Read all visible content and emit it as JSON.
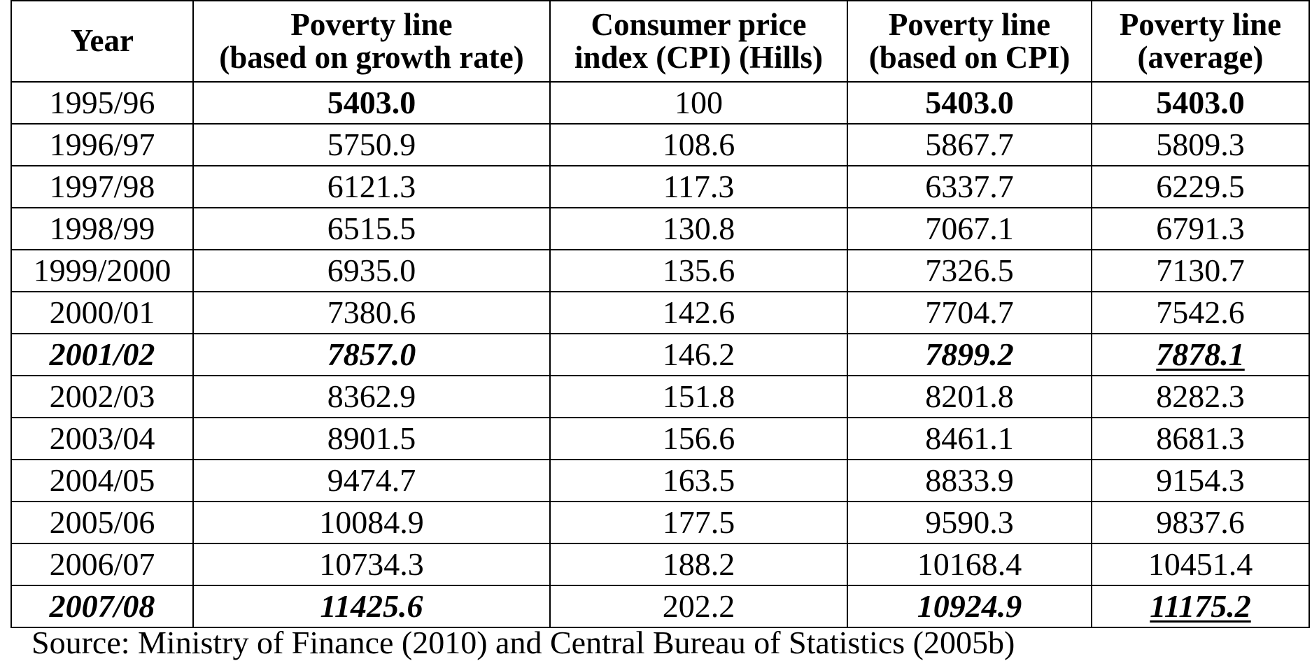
{
  "table": {
    "headers": [
      {
        "line1": "Year",
        "line2": ""
      },
      {
        "line1": "Poverty line",
        "line2": "(based on growth rate)"
      },
      {
        "line1": "Consumer price",
        "line2": "index (CPI) (Hills)"
      },
      {
        "line1": "Poverty line",
        "line2": "(based on CPI)"
      },
      {
        "line1": "Poverty line",
        "line2": "(average)"
      }
    ],
    "rows": [
      {
        "year": "1995/96",
        "growth": "5403.0",
        "cpi": "100",
        "cpi_line": "5403.0",
        "average": "5403.0"
      },
      {
        "year": "1996/97",
        "growth": "5750.9",
        "cpi": "108.6",
        "cpi_line": "5867.7",
        "average": "5809.3"
      },
      {
        "year": "1997/98",
        "growth": "6121.3",
        "cpi": "117.3",
        "cpi_line": "6337.7",
        "average": "6229.5"
      },
      {
        "year": "1998/99",
        "growth": "6515.5",
        "cpi": "130.8",
        "cpi_line": "7067.1",
        "average": "6791.3"
      },
      {
        "year": "1999/2000",
        "growth": "6935.0",
        "cpi": "135.6",
        "cpi_line": "7326.5",
        "average": "7130.7"
      },
      {
        "year": "2000/01",
        "growth": "7380.6",
        "cpi": "142.6",
        "cpi_line": "7704.7",
        "average": "7542.6"
      },
      {
        "year": "2001/02",
        "growth": "7857.0",
        "cpi": "146.2",
        "cpi_line": "7899.2",
        "average": "7878.1"
      },
      {
        "year": "2002/03",
        "growth": "8362.9",
        "cpi": "151.8",
        "cpi_line": "8201.8",
        "average": "8282.3"
      },
      {
        "year": "2003/04",
        "growth": "8901.5",
        "cpi": "156.6",
        "cpi_line": "8461.1",
        "average": "8681.3"
      },
      {
        "year": "2004/05",
        "growth": "9474.7",
        "cpi": "163.5",
        "cpi_line": "8833.9",
        "average": "9154.3"
      },
      {
        "year": "2005/06",
        "growth": "10084.9",
        "cpi": "177.5",
        "cpi_line": "9590.3",
        "average": "9837.6"
      },
      {
        "year": "2006/07",
        "growth": "10734.3",
        "cpi": "188.2",
        "cpi_line": "10168.4",
        "average": "10451.4"
      },
      {
        "year": "2007/08",
        "growth": "11425.6",
        "cpi": "202.2",
        "cpi_line": "10924.9",
        "average": "11175.2"
      }
    ]
  },
  "source_note": "Source: Ministry of Finance (2010) and Central Bureau of Statistics (2005b)"
}
